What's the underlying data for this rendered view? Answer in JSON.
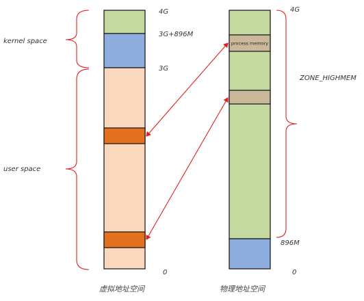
{
  "colors": {
    "kernel_green": "#c4d9a0",
    "kernel_blue": "#8eaedf",
    "user_peach": "#fad8bd",
    "user_orange": "#e3701e",
    "phys_green": "#c4d9a0",
    "process_tan": "#c9b99a",
    "phys_blue": "#8eaedf",
    "bracket_red": "#e02020",
    "arrow_red": "#e02020",
    "outline": "#111111"
  },
  "virtual": {
    "caption": "虚拟地址空间",
    "top_label": "4G",
    "mid_label": "3G+896M",
    "split_label": "3G",
    "bottom_label": "0",
    "kernel_space_label": "kernel space",
    "user_space_label": "user space"
  },
  "physical": {
    "caption": "物理地址空间",
    "top_label": "4G",
    "low_label": "896M",
    "bottom_label": "0",
    "process_memory_label": "process memory",
    "zone_label": "ZONE_HIGHMEM"
  }
}
